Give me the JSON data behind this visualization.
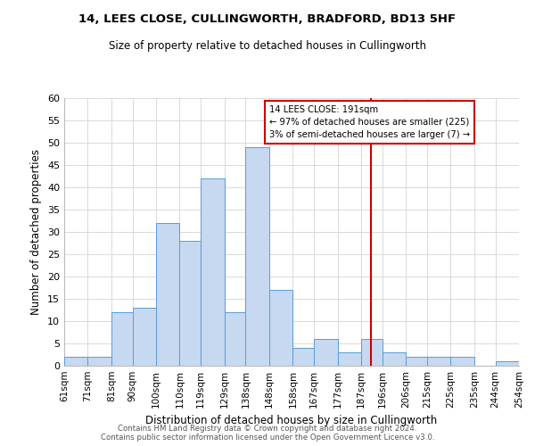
{
  "title": "14, LEES CLOSE, CULLINGWORTH, BRADFORD, BD13 5HF",
  "subtitle": "Size of property relative to detached houses in Cullingworth",
  "xlabel": "Distribution of detached houses by size in Cullingworth",
  "ylabel": "Number of detached properties",
  "footer_line1": "Contains HM Land Registry data © Crown copyright and database right 2024.",
  "footer_line2": "Contains public sector information licensed under the Open Government Licence v3.0.",
  "bin_labels": [
    "61sqm",
    "71sqm",
    "81sqm",
    "90sqm",
    "100sqm",
    "110sqm",
    "119sqm",
    "129sqm",
    "138sqm",
    "148sqm",
    "158sqm",
    "167sqm",
    "177sqm",
    "187sqm",
    "196sqm",
    "206sqm",
    "215sqm",
    "225sqm",
    "235sqm",
    "244sqm",
    "254sqm"
  ],
  "bin_edges": [
    61,
    71,
    81,
    90,
    100,
    110,
    119,
    129,
    138,
    148,
    158,
    167,
    177,
    187,
    196,
    206,
    215,
    225,
    235,
    244,
    254
  ],
  "bar_heights": [
    2,
    2,
    12,
    13,
    32,
    28,
    42,
    12,
    49,
    17,
    4,
    6,
    3,
    6,
    3,
    2,
    2,
    2,
    0,
    1
  ],
  "bar_color": "#c6d9f0",
  "bar_edge_color": "#5b9bd5",
  "ylim": [
    0,
    60
  ],
  "yticks": [
    0,
    5,
    10,
    15,
    20,
    25,
    30,
    35,
    40,
    45,
    50,
    55,
    60
  ],
  "vline_x": 191,
  "vline_color": "#cc0000",
  "annotation_text_line1": "14 LEES CLOSE: 191sqm",
  "annotation_text_line2": "← 97% of detached houses are smaller (225)",
  "annotation_text_line3": "3% of semi-detached houses are larger (7) →",
  "grid_color": "#d9d9d9",
  "background_color": "#ffffff",
  "ax_background_color": "#ffffff"
}
